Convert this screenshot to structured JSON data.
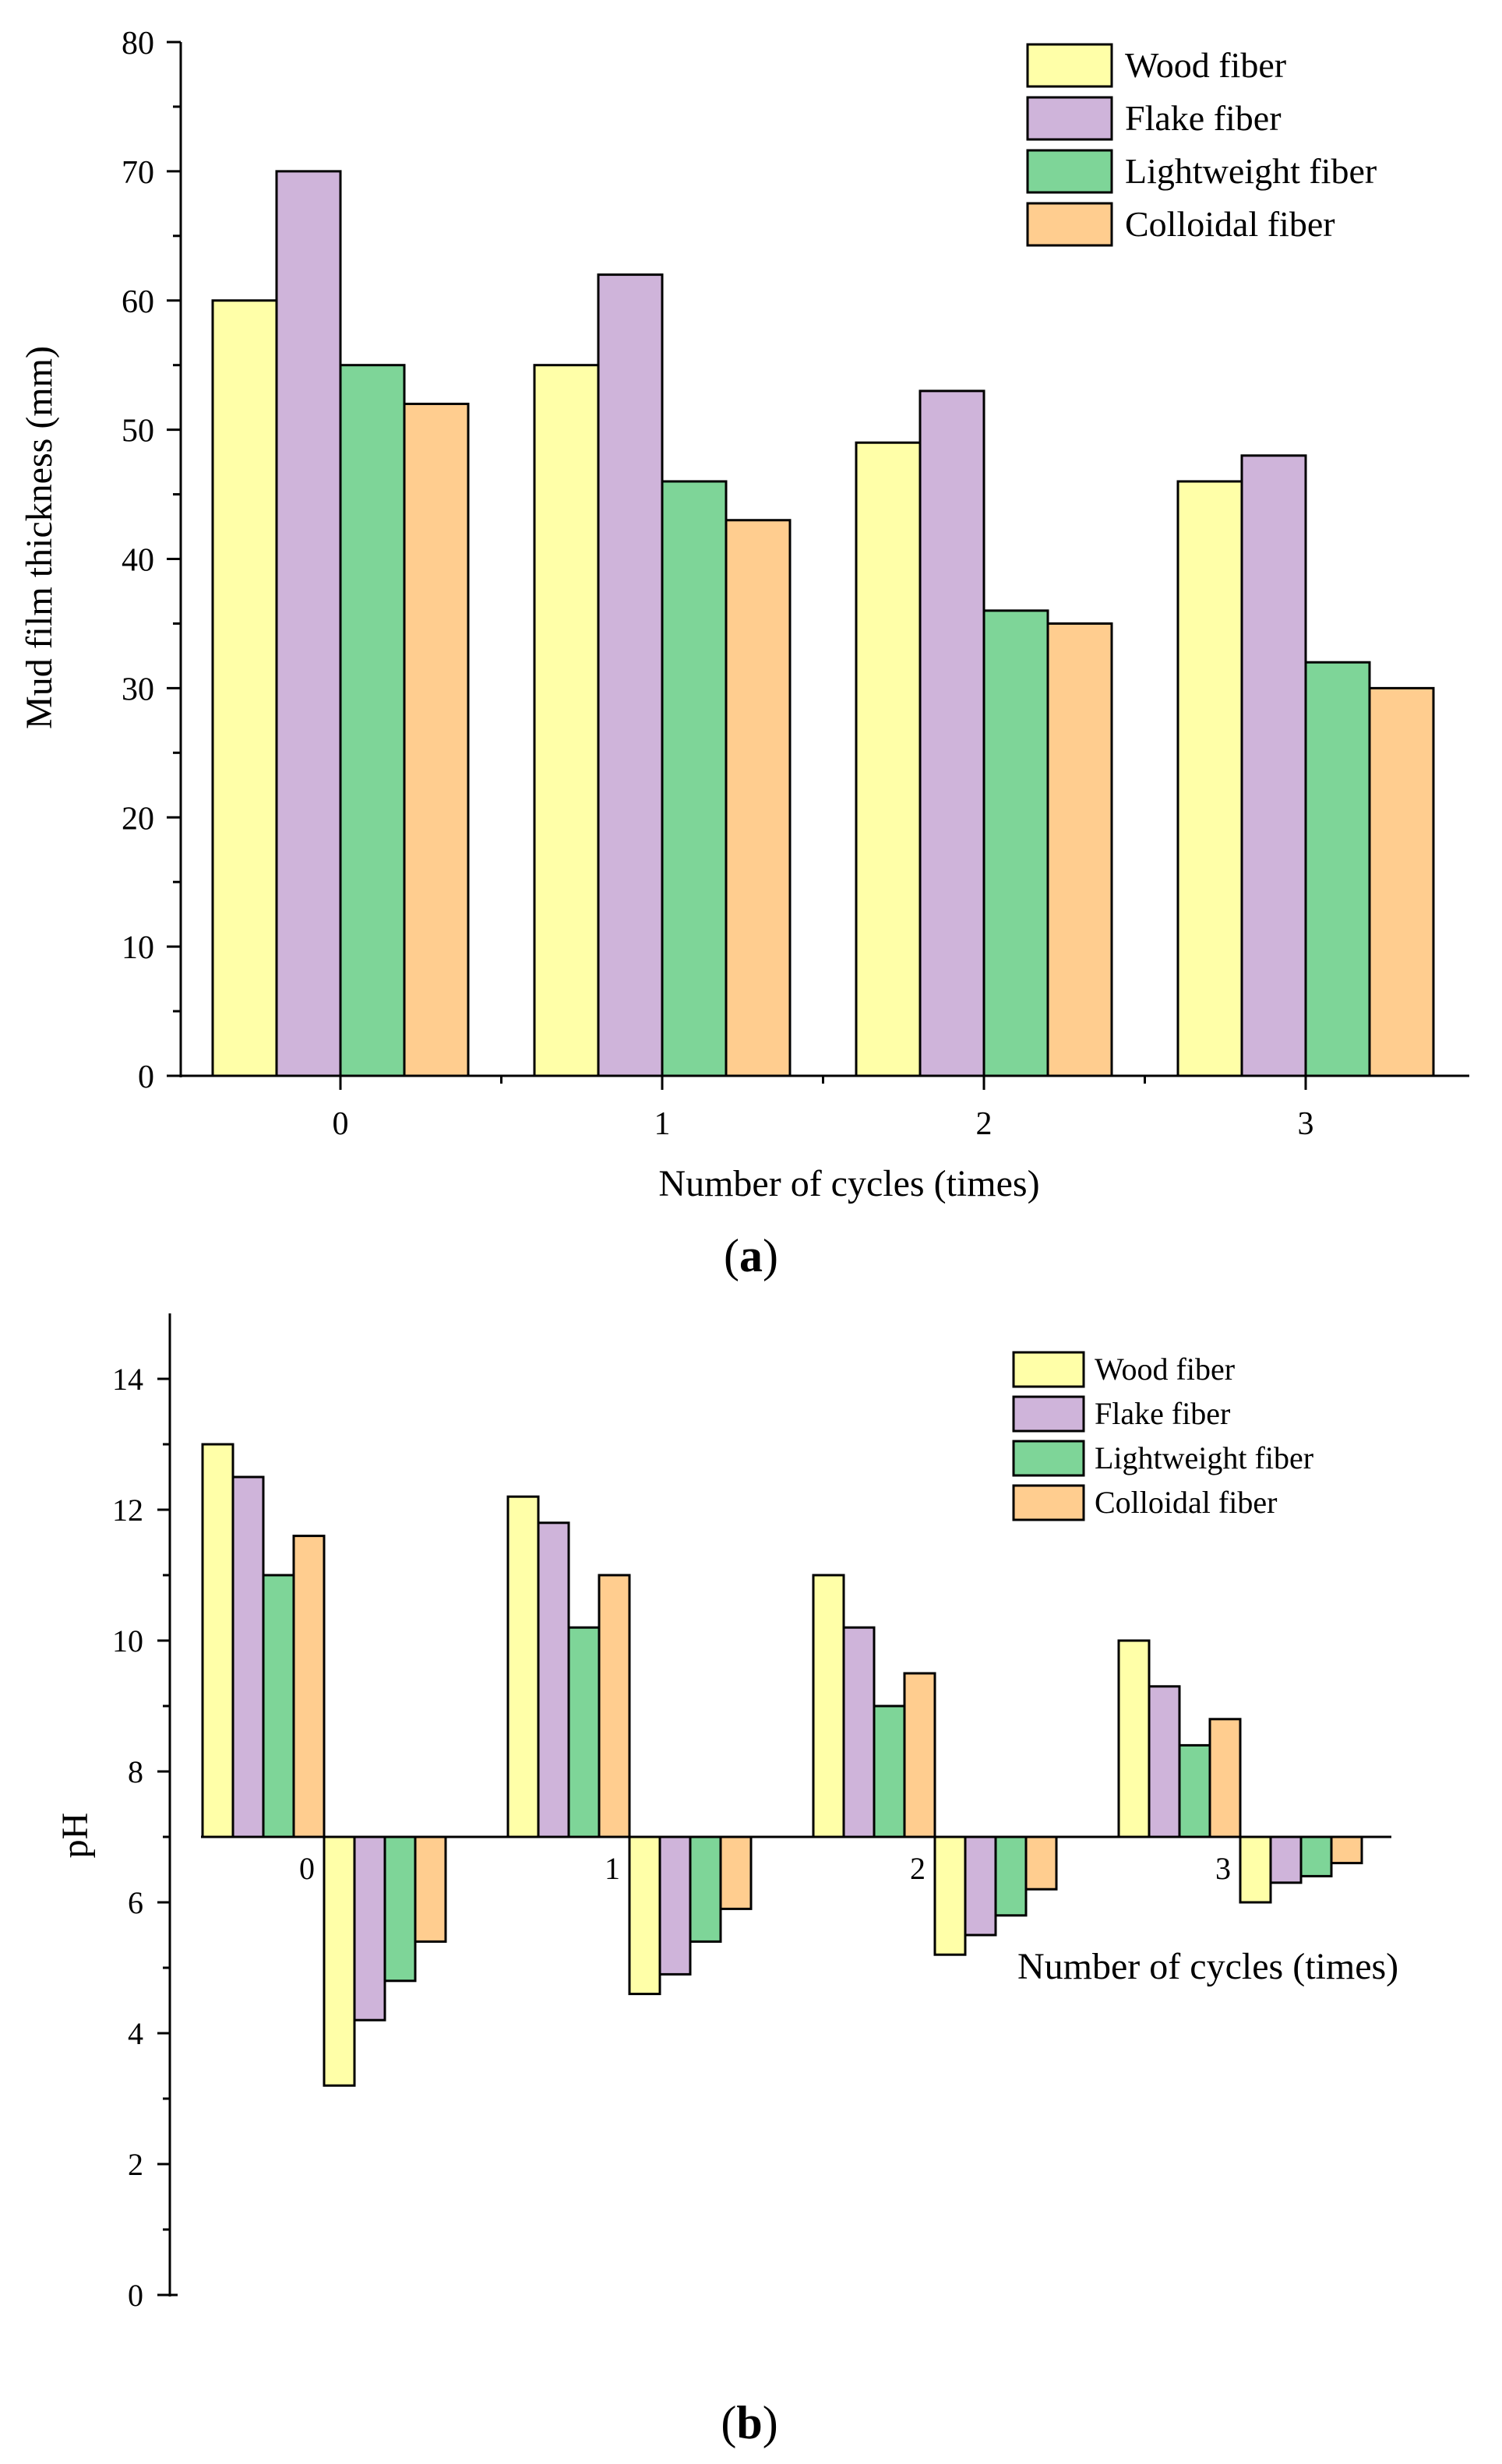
{
  "colors": {
    "wood": "#FFFFA8",
    "flake": "#CFB4DA",
    "lightweight": "#7ED598",
    "colloidal": "#FFCD8F",
    "stroke": "#000000"
  },
  "chart_data": [
    {
      "type": "bar",
      "panel_label": "a",
      "title": "",
      "xlabel": "Number of cycles (times)",
      "ylabel": "Mud film thickness (mm)",
      "categories": [
        "0",
        "1",
        "2",
        "3"
      ],
      "ylim": [
        0,
        80
      ],
      "yticks": [
        0,
        10,
        20,
        30,
        40,
        50,
        60,
        70,
        80
      ],
      "legend_position": "top-right",
      "series": [
        {
          "name": "Wood fiber",
          "color_key": "wood",
          "values": [
            60,
            55,
            49,
            46
          ]
        },
        {
          "name": "Flake fiber",
          "color_key": "flake",
          "values": [
            70,
            62,
            53,
            48
          ]
        },
        {
          "name": "Lightweight fiber",
          "color_key": "lightweight",
          "values": [
            55,
            46,
            36,
            32
          ]
        },
        {
          "name": "Colloidal fiber",
          "color_key": "colloidal",
          "values": [
            52,
            43,
            35,
            30
          ]
        }
      ]
    },
    {
      "type": "bar",
      "panel_label": "b",
      "title": "",
      "xlabel": "Number of cycles (times)",
      "ylabel": "pH",
      "categories": [
        "0",
        "1",
        "2",
        "3"
      ],
      "ylim": [
        0,
        15
      ],
      "yticks": [
        0,
        2,
        4,
        6,
        8,
        10,
        12,
        14
      ],
      "baseline": 7,
      "legend_position": "top-right",
      "series": [
        {
          "name": "Wood fiber",
          "color_key": "wood",
          "values": [
            13,
            12.2,
            11,
            10
          ]
        },
        {
          "name": "Flake fiber",
          "color_key": "flake",
          "values": [
            12.5,
            11.8,
            10.2,
            9.3
          ]
        },
        {
          "name": "Lightweight fiber",
          "color_key": "lightweight",
          "values": [
            11,
            10.2,
            9,
            8.4
          ]
        },
        {
          "name": "Colloidal fiber",
          "color_key": "colloidal",
          "values": [
            11.6,
            11,
            9.5,
            8.8
          ]
        },
        {
          "name": "Wood fiber",
          "color_key": "wood",
          "values": [
            3.2,
            4.6,
            5.2,
            6.0
          ]
        },
        {
          "name": "Flake fiber",
          "color_key": "flake",
          "values": [
            4.2,
            4.9,
            5.5,
            6.3
          ]
        },
        {
          "name": "Lightweight fiber",
          "color_key": "lightweight",
          "values": [
            4.8,
            5.4,
            5.8,
            6.4
          ]
        },
        {
          "name": "Colloidal fiber",
          "color_key": "colloidal",
          "values": [
            5.4,
            5.9,
            6.2,
            6.6
          ]
        }
      ]
    }
  ]
}
